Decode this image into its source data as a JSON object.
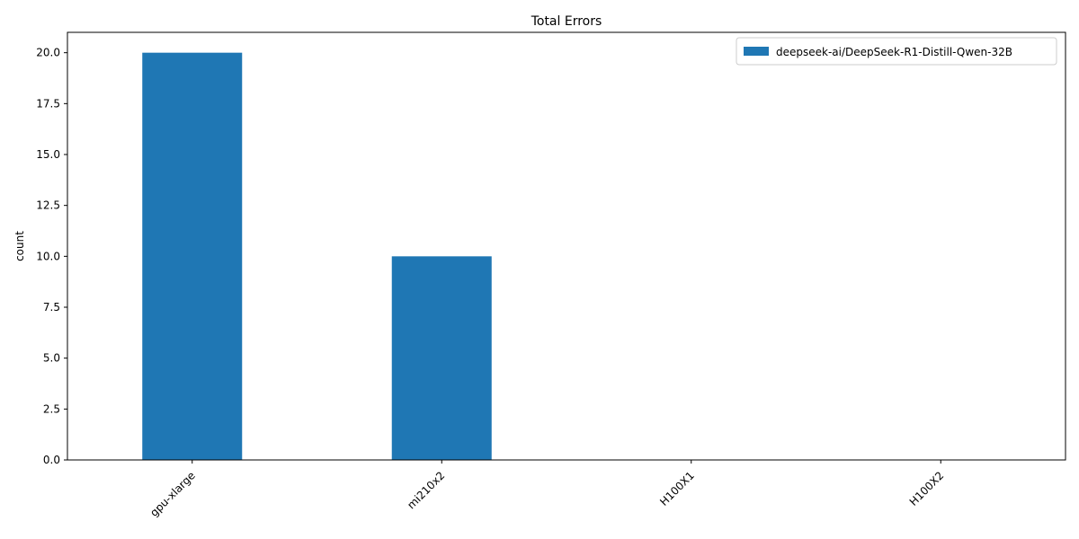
{
  "chart_data": {
    "type": "bar",
    "title": "Total Errors",
    "xlabel": "",
    "ylabel": "count",
    "categories": [
      "gpu-xlarge",
      "mi210x2",
      "H100X1",
      "H100X2"
    ],
    "series": [
      {
        "name": "deepseek-ai/DeepSeek-R1-Distill-Qwen-32B",
        "values": [
          20,
          10,
          0,
          0
        ],
        "color": "#1f77b4"
      }
    ],
    "ylim": [
      0,
      21
    ],
    "yticks": [
      0.0,
      2.5,
      5.0,
      7.5,
      10.0,
      12.5,
      15.0,
      17.5,
      20.0
    ],
    "ytick_labels": [
      "0.0",
      "2.5",
      "5.0",
      "7.5",
      "10.0",
      "12.5",
      "15.0",
      "17.5",
      "20.0"
    ],
    "grid": false,
    "legend_position": "top-right",
    "xtick_rotation": 45
  }
}
